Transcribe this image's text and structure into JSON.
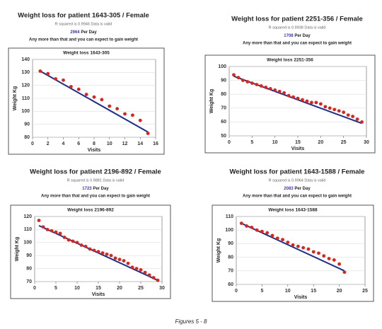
{
  "chart_data": [
    {
      "type": "scatter",
      "heading": "Weight loss for patient 1643-305 / Female",
      "r_squared_text": "R squared is 0.9946 Data is valid",
      "per_day_value": 2964,
      "per_day_unit": "Per Day",
      "warning": "Any more than that and you can expect to gain weight",
      "title": "Weight loss 1643-305",
      "y_label": "Weight Kg",
      "x_label": "Visits",
      "x": [
        1,
        2,
        3,
        4,
        5,
        6,
        7,
        8,
        9,
        10,
        11,
        12,
        13,
        14,
        15
      ],
      "series": [
        {
          "color": "#d8261c",
          "values": [
            131,
            129,
            125,
            124,
            119,
            117,
            113,
            111,
            109,
            104,
            102,
            98,
            97,
            93,
            83
          ]
        }
      ],
      "trend": {
        "color": "#1f2e86",
        "x": [
          1,
          15
        ],
        "values": [
          131,
          84
        ]
      },
      "xlim": [
        0,
        16
      ],
      "xticks": [
        0,
        2,
        4,
        6,
        8,
        10,
        12,
        14,
        16
      ],
      "ylim": [
        80,
        140
      ],
      "yticks": [
        80,
        90,
        100,
        110,
        120,
        130,
        140
      ]
    },
    {
      "type": "scatter",
      "heading": "Weight loss for patient 2251-356 / Female",
      "r_squared_text": "R squared is 0.9938 Data is valid",
      "per_day_value": 1708,
      "per_day_unit": "Per Day",
      "warning": "Any more than that and you can expect to gain weight",
      "title": "Weight loss 2251-356",
      "y_label": "Weight Kg",
      "x_label": "Visits",
      "x": [
        1,
        2,
        3,
        4,
        5,
        6,
        7,
        8,
        9,
        10,
        11,
        12,
        13,
        14,
        15,
        16,
        17,
        18,
        19,
        20,
        21,
        22,
        23,
        24,
        25,
        26,
        27,
        28,
        29
      ],
      "series": [
        {
          "color": "#d8261c",
          "values": [
            94,
            92,
            90,
            89,
            88,
            87,
            86,
            85,
            84,
            83,
            82,
            81,
            79,
            78,
            77,
            76,
            75,
            74,
            74,
            73,
            71,
            70,
            69,
            68,
            67,
            65,
            64,
            62,
            60
          ]
        }
      ],
      "trend": {
        "color": "#1f2e86",
        "x": [
          1,
          29
        ],
        "values": [
          93,
          59
        ]
      },
      "xlim": [
        0,
        30
      ],
      "xticks": [
        0,
        5,
        10,
        15,
        20,
        25,
        30
      ],
      "ylim": [
        50,
        100
      ],
      "yticks": [
        50,
        60,
        70,
        80,
        90,
        100
      ]
    },
    {
      "type": "scatter",
      "heading": "Weight loss for patient 2196-892 / Female",
      "r_squared_text": "R squared is 0.9881 Data is valid",
      "per_day_value": 1723,
      "per_day_unit": "Per Day",
      "warning": "Any more than that and you can expect to gain weight",
      "title": "Weight loss 2196-892",
      "y_label": "Weight Kg",
      "x_label": "Visits",
      "x": [
        1,
        2,
        3,
        4,
        5,
        6,
        7,
        8,
        9,
        10,
        11,
        12,
        13,
        14,
        15,
        16,
        17,
        18,
        19,
        20,
        21,
        22,
        23,
        24,
        25,
        26,
        27,
        28,
        29
      ],
      "series": [
        {
          "color": "#d8261c",
          "values": [
            117,
            112,
            110,
            109,
            108,
            107,
            104,
            102,
            101,
            100,
            98,
            97,
            95,
            94,
            93,
            92,
            91,
            90,
            88,
            87,
            86,
            84,
            81,
            80,
            79,
            77,
            75,
            73,
            71
          ]
        }
      ],
      "trend": {
        "color": "#1f2e86",
        "x": [
          1,
          29
        ],
        "values": [
          113,
          71
        ]
      },
      "xlim": [
        0,
        30
      ],
      "xticks": [
        0,
        5,
        10,
        15,
        20,
        25,
        30
      ],
      "ylim": [
        70,
        120
      ],
      "yticks": [
        70,
        80,
        90,
        100,
        110,
        120
      ]
    },
    {
      "type": "scatter",
      "heading": "Weight loss for patient 1643-1588 / Female",
      "r_squared_text": "R squared is 0.9964 Data is valid",
      "per_day_value": 2083,
      "per_day_unit": "Per Day",
      "warning": "Any more than that and you can expect to gain weight",
      "title": "Weight loss 1643-1588",
      "y_label": "Weight Kg",
      "x_label": "Visits",
      "x": [
        1,
        2,
        3,
        4,
        5,
        6,
        7,
        8,
        9,
        10,
        11,
        12,
        13,
        14,
        15,
        16,
        17,
        18,
        19,
        20,
        21
      ],
      "series": [
        {
          "color": "#d8261c",
          "values": [
            105,
            103,
            102,
            100,
            99,
            98,
            96,
            94,
            93,
            91,
            89,
            88,
            87,
            86,
            84,
            83,
            81,
            79,
            78,
            75,
            69
          ]
        }
      ],
      "trend": {
        "color": "#1f2e86",
        "x": [
          1,
          21
        ],
        "values": [
          105,
          70
        ]
      },
      "xlim": [
        0,
        25
      ],
      "xticks": [
        0,
        5,
        10,
        15,
        20,
        25
      ],
      "ylim": [
        60,
        110
      ],
      "yticks": [
        60,
        70,
        80,
        90,
        100,
        110
      ]
    }
  ],
  "caption": "Figures 5 - 8"
}
